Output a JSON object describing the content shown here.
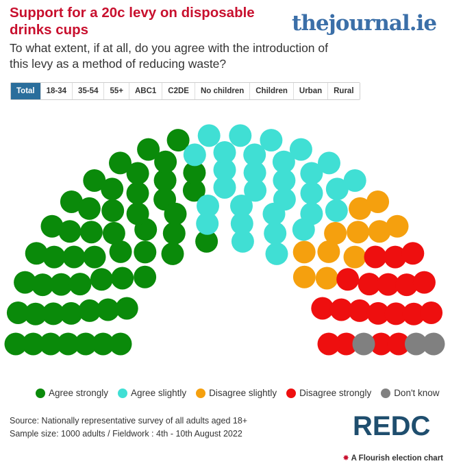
{
  "header": {
    "title": "Support for a 20c levy on disposable drinks cups",
    "subtitle": "To what extent, if at all, do you agree with the introduction of this levy as a method of reducing waste?",
    "logo": "thejournal.ie"
  },
  "tabs": [
    "Total",
    "18-34",
    "35-54",
    "55+",
    "ABC1",
    "C2DE",
    "No children",
    "Children",
    "Urban",
    "Rural"
  ],
  "active_tab": "Total",
  "chart_data": {
    "type": "parliament",
    "series": [
      {
        "name": "Agree strongly",
        "value": 52,
        "color": "#0a8a0a"
      },
      {
        "name": "Agree slightly",
        "value": 30,
        "color": "#40dfd4"
      },
      {
        "name": "Disagree slightly",
        "value": 11,
        "color": "#f5a00e"
      },
      {
        "name": "Disagree strongly",
        "value": 19,
        "color": "#ee0f0f"
      },
      {
        "name": "Don't know",
        "value": 3,
        "color": "#808080"
      }
    ]
  },
  "footer": {
    "source": "Source: Nationally representative survey of all adults aged 18+",
    "sample": "Sample size: 1000 adults / Fieldwork : 4th - 10th August 2022",
    "pollster_logo": "REDC",
    "flourish": "A Flourish election chart"
  }
}
